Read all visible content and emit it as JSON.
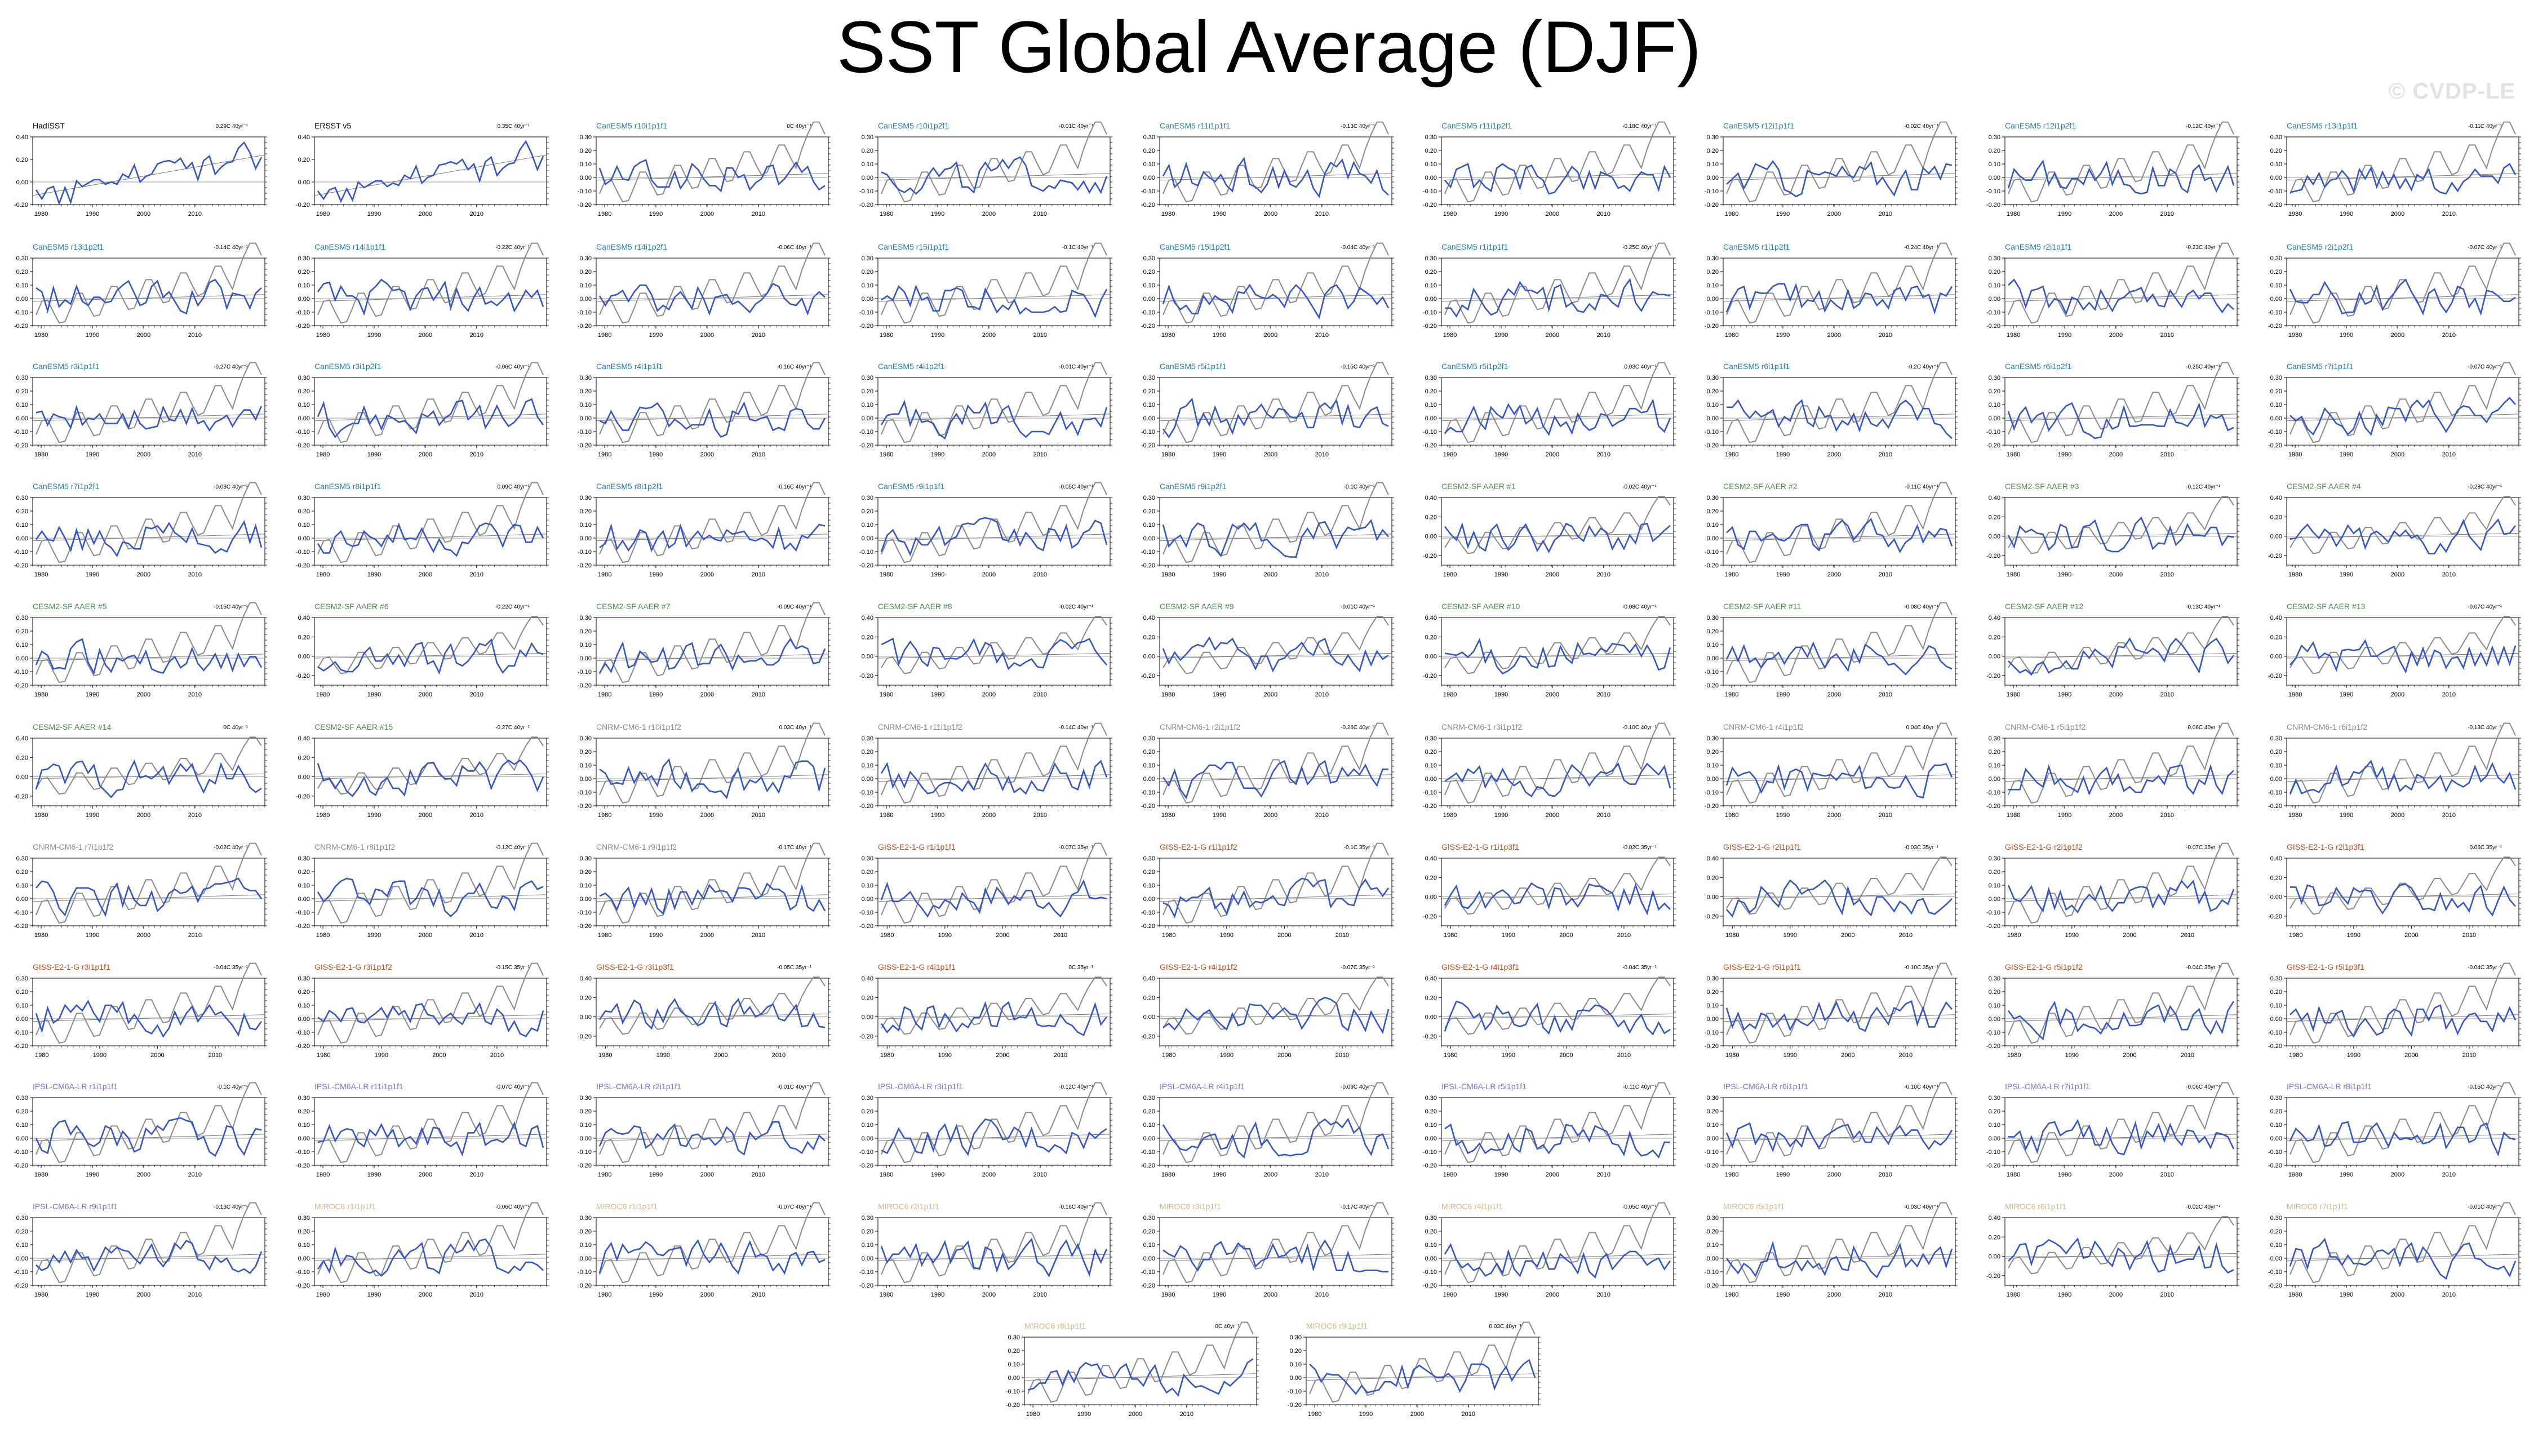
{
  "title": "SST Global Average (DJF)",
  "watermark": "© CVDP-LE",
  "colors": {
    "series": "#3355cc",
    "reference": "#8a8a8a",
    "HadISST": "#000000",
    "ERSST": "#000000",
    "CanESM5": "#1f7fb4",
    "CESM2": "#4f8a4f",
    "CNRM": "#8a8a8a",
    "GISS": "#c84b1a",
    "IPSL": "#7b6fd4",
    "MIROC6": "#e0b478"
  },
  "chart_data": [
    {
      "type": "line",
      "label": "HadISST",
      "trend": "0.29C 40yr⁻¹",
      "family": "HadISST",
      "ylim": [
        -0.2,
        0.4
      ],
      "yticks": [
        "0.40",
        "0.20",
        "0.00",
        "-0.20"
      ],
      "xticks": [
        "1980",
        "1990",
        "2000",
        "2010"
      ],
      "series": [
        {
          "values": [
            -0.07,
            -0.15,
            -0.06,
            -0.04,
            -0.19,
            -0.05,
            -0.18,
            0.01,
            -0.04,
            -0.01,
            0.02,
            0.02,
            -0.02,
            0.0,
            -0.02,
            0.07,
            0.04,
            0.15,
            0.0,
            0.05,
            0.07,
            0.16,
            0.18,
            0.19,
            0.17,
            0.21,
            0.12,
            0.17,
            0.02,
            0.19,
            0.23,
            0.07,
            0.13,
            0.17,
            0.18,
            0.3,
            0.35,
            0.26,
            0.12,
            0.22
          ]
        }
      ]
    },
    {
      "type": "line",
      "label": "ERSST v5",
      "trend": "0.35C 40yr⁻¹",
      "family": "ERSST",
      "ylim": [
        -0.2,
        0.4
      ],
      "yticks": [
        "0.40",
        "0.20",
        "0.00",
        "-0.20"
      ],
      "xticks": [
        "1980",
        "1990",
        "2000",
        "2010"
      ],
      "series": [
        {
          "values": [
            -0.08,
            -0.15,
            -0.07,
            -0.05,
            -0.17,
            -0.06,
            -0.16,
            0.0,
            -0.05,
            -0.02,
            0.01,
            0.01,
            -0.04,
            -0.01,
            -0.03,
            0.06,
            0.03,
            0.14,
            -0.01,
            0.04,
            0.06,
            0.15,
            0.16,
            0.18,
            0.16,
            0.2,
            0.11,
            0.16,
            0.01,
            0.18,
            0.22,
            0.06,
            0.12,
            0.16,
            0.17,
            0.29,
            0.36,
            0.25,
            0.11,
            0.23
          ]
        }
      ]
    },
    {
      "type": "line",
      "label": "CanESM5 r10i1p1f1",
      "trend": "0C 40yr⁻¹",
      "family": "CanESM5"
    },
    {
      "type": "line",
      "label": "CanESM5 r10i1p2f1",
      "trend": "-0.01C 40yr⁻¹",
      "family": "CanESM5"
    },
    {
      "type": "line",
      "label": "CanESM5 r11i1p1f1",
      "trend": "-0.13C 40yr⁻¹",
      "family": "CanESM5"
    },
    {
      "type": "line",
      "label": "CanESM5 r11i1p2f1",
      "trend": "-0.18C 40yr⁻¹",
      "family": "CanESM5"
    },
    {
      "type": "line",
      "label": "CanESM5 r12i1p1f1",
      "trend": "-0.02C 40yr⁻¹",
      "family": "CanESM5"
    },
    {
      "type": "line",
      "label": "CanESM5 r12i1p2f1",
      "trend": "-0.12C 40yr⁻¹",
      "family": "CanESM5"
    },
    {
      "type": "line",
      "label": "CanESM5 r13i1p1f1",
      "trend": "-0.11C 40yr⁻¹",
      "family": "CanESM5"
    },
    {
      "type": "line",
      "label": "CanESM5 r13i1p2f1",
      "trend": "-0.14C 40yr⁻¹",
      "family": "CanESM5"
    },
    {
      "type": "line",
      "label": "CanESM5 r14i1p1f1",
      "trend": "-0.22C 40yr⁻¹",
      "family": "CanESM5"
    },
    {
      "type": "line",
      "label": "CanESM5 r14i1p2f1",
      "trend": "-0.06C 40yr⁻¹",
      "family": "CanESM5"
    },
    {
      "type": "line",
      "label": "CanESM5 r15i1p1f1",
      "trend": "-0.1C 40yr⁻¹",
      "family": "CanESM5"
    },
    {
      "type": "line",
      "label": "CanESM5 r15i1p2f1",
      "trend": "-0.04C 40yr⁻¹",
      "family": "CanESM5"
    },
    {
      "type": "line",
      "label": "CanESM5 r1i1p1f1",
      "trend": "-0.25C 40yr⁻¹",
      "family": "CanESM5"
    },
    {
      "type": "line",
      "label": "CanESM5 r1i1p2f1",
      "trend": "-0.24C 40yr⁻¹",
      "family": "CanESM5"
    },
    {
      "type": "line",
      "label": "CanESM5 r2i1p1f1",
      "trend": "-0.23C 40yr⁻¹",
      "family": "CanESM5"
    },
    {
      "type": "line",
      "label": "CanESM5 r2i1p2f1",
      "trend": "-0.07C 40yr⁻¹",
      "family": "CanESM5"
    },
    {
      "type": "line",
      "label": "CanESM5 r3i1p1f1",
      "trend": "-0.27C 40yr⁻¹",
      "family": "CanESM5"
    },
    {
      "type": "line",
      "label": "CanESM5 r3i1p2f1",
      "trend": "-0.06C 40yr⁻¹",
      "family": "CanESM5"
    },
    {
      "type": "line",
      "label": "CanESM5 r4i1p1f1",
      "trend": "-0.16C 40yr⁻¹",
      "family": "CanESM5"
    },
    {
      "type": "line",
      "label": "CanESM5 r4i1p2f1",
      "trend": "-0.01C 40yr⁻¹",
      "family": "CanESM5"
    },
    {
      "type": "line",
      "label": "CanESM5 r5i1p1f1",
      "trend": "-0.15C 40yr⁻¹",
      "family": "CanESM5"
    },
    {
      "type": "line",
      "label": "CanESM5 r5i1p2f1",
      "trend": "0.03C 40yr⁻¹",
      "family": "CanESM5"
    },
    {
      "type": "line",
      "label": "CanESM5 r6i1p1f1",
      "trend": "-0.2C 40yr⁻¹",
      "family": "CanESM5"
    },
    {
      "type": "line",
      "label": "CanESM5 r6i1p2f1",
      "trend": "-0.25C 40yr⁻¹",
      "family": "CanESM5"
    },
    {
      "type": "line",
      "label": "CanESM5 r7i1p1f1",
      "trend": "-0.07C 40yr⁻¹",
      "family": "CanESM5"
    },
    {
      "type": "line",
      "label": "CanESM5 r7i1p2f1",
      "trend": "-0.03C 40yr⁻¹",
      "family": "CanESM5"
    },
    {
      "type": "line",
      "label": "CanESM5 r8i1p1f1",
      "trend": "0.09C 40yr⁻¹",
      "family": "CanESM5"
    },
    {
      "type": "line",
      "label": "CanESM5 r8i1p2f1",
      "trend": "-0.16C 40yr⁻¹",
      "family": "CanESM5"
    },
    {
      "type": "line",
      "label": "CanESM5 r9i1p1f1",
      "trend": "-0.05C 40yr⁻¹",
      "family": "CanESM5"
    },
    {
      "type": "line",
      "label": "CanESM5 r9i1p2f1",
      "trend": "-0.1C 40yr⁻¹",
      "family": "CanESM5"
    },
    {
      "type": "line",
      "label": "CESM2-SF AAER #1",
      "trend": "-0.02C 40yr⁻¹",
      "family": "CESM2",
      "wide": true
    },
    {
      "type": "line",
      "label": "CESM2-SF AAER #2",
      "trend": "-0.11C 40yr⁻¹",
      "family": "CESM2"
    },
    {
      "type": "line",
      "label": "CESM2-SF AAER #3",
      "trend": "-0.12C 40yr⁻¹",
      "family": "CESM2",
      "wide": true
    },
    {
      "type": "line",
      "label": "CESM2-SF AAER #4",
      "trend": "-0.28C 40yr⁻¹",
      "family": "CESM2",
      "wide": true
    },
    {
      "type": "line",
      "label": "CESM2-SF AAER #5",
      "trend": "-0.15C 40yr⁻¹",
      "family": "CESM2"
    },
    {
      "type": "line",
      "label": "CESM2-SF AAER #6",
      "trend": "-0.22C 40yr⁻¹",
      "family": "CESM2",
      "wide": true
    },
    {
      "type": "line",
      "label": "CESM2-SF AAER #7",
      "trend": "-0.09C 40yr⁻¹",
      "family": "CESM2"
    },
    {
      "type": "line",
      "label": "CESM2-SF AAER #8",
      "trend": "-0.02C 40yr⁻¹",
      "family": "CESM2",
      "wide": true
    },
    {
      "type": "line",
      "label": "CESM2-SF AAER #9",
      "trend": "-0.01C 40yr⁻¹",
      "family": "CESM2",
      "wide": true
    },
    {
      "type": "line",
      "label": "CESM2-SF AAER #10",
      "trend": "-0.08C 40yr⁻¹",
      "family": "CESM2",
      "wide": true
    },
    {
      "type": "line",
      "label": "CESM2-SF AAER #11",
      "trend": "-0.08C 40yr⁻¹",
      "family": "CESM2"
    },
    {
      "type": "line",
      "label": "CESM2-SF AAER #12",
      "trend": "-0.13C 40yr⁻¹",
      "family": "CESM2",
      "wide": true
    },
    {
      "type": "line",
      "label": "CESM2-SF AAER #13",
      "trend": "-0.07C 40yr⁻¹",
      "family": "CESM2",
      "wide": true
    },
    {
      "type": "line",
      "label": "CESM2-SF AAER #14",
      "trend": "0C 40yr⁻¹",
      "family": "CESM2",
      "wide": true
    },
    {
      "type": "line",
      "label": "CESM2-SF AAER #15",
      "trend": "-0.27C 40yr⁻¹",
      "family": "CESM2",
      "wide": true
    },
    {
      "type": "line",
      "label": "CNRM-CM6-1 r10i1p1f2",
      "trend": "0.03C 40yr⁻¹",
      "family": "CNRM"
    },
    {
      "type": "line",
      "label": "CNRM-CM6-1 r11i1p1f2",
      "trend": "-0.14C 40yr⁻¹",
      "family": "CNRM"
    },
    {
      "type": "line",
      "label": "CNRM-CM6-1 r2i1p1f2",
      "trend": "-0.26C 40yr⁻¹",
      "family": "CNRM"
    },
    {
      "type": "line",
      "label": "CNRM-CM6-1 r3i1p1f2",
      "trend": "-0.10C 40yr⁻¹",
      "family": "CNRM"
    },
    {
      "type": "line",
      "label": "CNRM-CM6-1 r4i1p1f2",
      "trend": "0.04C 40yr⁻¹",
      "family": "CNRM"
    },
    {
      "type": "line",
      "label": "CNRM-CM6-1 r5i1p1f2",
      "trend": "0.06C 40yr⁻¹",
      "family": "CNRM"
    },
    {
      "type": "line",
      "label": "CNRM-CM6-1 r6i1p1f2",
      "trend": "-0.13C 40yr⁻¹",
      "family": "CNRM"
    },
    {
      "type": "line",
      "label": "CNRM-CM6-1 r7i1p1f2",
      "trend": "-0.02C 40yr⁻¹",
      "family": "CNRM"
    },
    {
      "type": "line",
      "label": "CNRM-CM6-1 r8i1p1f2",
      "trend": "-0.12C 40yr⁻¹",
      "family": "CNRM"
    },
    {
      "type": "line",
      "label": "CNRM-CM6-1 r9i1p1f2",
      "trend": "-0.17C 40yr⁻¹",
      "family": "CNRM"
    },
    {
      "type": "line",
      "label": "GISS-E2-1-G r1i1p1f1",
      "trend": "-0.07C 35yr⁻¹",
      "family": "GISS",
      "span": 35
    },
    {
      "type": "line",
      "label": "GISS-E2-1-G r1i1p1f2",
      "trend": "-0.1C 35yr⁻¹",
      "family": "GISS",
      "span": 35
    },
    {
      "type": "line",
      "label": "GISS-E2-1-G r1i1p3f1",
      "trend": "-0.02C 35yr⁻¹",
      "family": "GISS",
      "span": 35,
      "wide": true
    },
    {
      "type": "line",
      "label": "GISS-E2-1-G r2i1p1f1",
      "trend": "-0.03C 35yr⁻¹",
      "family": "GISS",
      "span": 35,
      "wide": true
    },
    {
      "type": "line",
      "label": "GISS-E2-1-G r2i1p1f2",
      "trend": "-0.07C 35yr⁻¹",
      "family": "GISS",
      "span": 35
    },
    {
      "type": "line",
      "label": "GISS-E2-1-G r2i1p3f1",
      "trend": "0.06C 35yr⁻¹",
      "family": "GISS",
      "span": 35,
      "wide": true
    },
    {
      "type": "line",
      "label": "GISS-E2-1-G r3i1p1f1",
      "trend": "-0.04C 35yr⁻¹",
      "family": "GISS",
      "span": 35
    },
    {
      "type": "line",
      "label": "GISS-E2-1-G r3i1p1f2",
      "trend": "-0.15C 35yr⁻¹",
      "family": "GISS",
      "span": 35
    },
    {
      "type": "line",
      "label": "GISS-E2-1-G r3i1p3f1",
      "trend": "-0.05C 35yr⁻¹",
      "family": "GISS",
      "span": 35,
      "wide": true
    },
    {
      "type": "line",
      "label": "GISS-E2-1-G r4i1p1f1",
      "trend": "0C 35yr⁻¹",
      "family": "GISS",
      "span": 35,
      "wide": true
    },
    {
      "type": "line",
      "label": "GISS-E2-1-G r4i1p1f2",
      "trend": "-0.07C 35yr⁻¹",
      "family": "GISS",
      "span": 35,
      "wide": true
    },
    {
      "type": "line",
      "label": "GISS-E2-1-G r4i1p3f1",
      "trend": "-0.04C 35yr⁻¹",
      "family": "GISS",
      "span": 35,
      "wide": true
    },
    {
      "type": "line",
      "label": "GISS-E2-1-G r5i1p1f1",
      "trend": "-0.10C 35yr⁻¹",
      "family": "GISS",
      "span": 35
    },
    {
      "type": "line",
      "label": "GISS-E2-1-G r5i1p1f2",
      "trend": "-0.04C 35yr⁻¹",
      "family": "GISS",
      "span": 35
    },
    {
      "type": "line",
      "label": "GISS-E2-1-G r5i1p3f1",
      "trend": "-0.04C 35yr⁻¹",
      "family": "GISS",
      "span": 35
    },
    {
      "type": "line",
      "label": "IPSL-CM6A-LR r1i1p1f1",
      "trend": "-0.1C 40yr⁻¹",
      "family": "IPSL"
    },
    {
      "type": "line",
      "label": "IPSL-CM6A-LR r11i1p1f1",
      "trend": "-0.07C 40yr⁻¹",
      "family": "IPSL"
    },
    {
      "type": "line",
      "label": "IPSL-CM6A-LR r2i1p1f1",
      "trend": "-0.01C 40yr⁻¹",
      "family": "IPSL"
    },
    {
      "type": "line",
      "label": "IPSL-CM6A-LR r3i1p1f1",
      "trend": "-0.12C 40yr⁻¹",
      "family": "IPSL"
    },
    {
      "type": "line",
      "label": "IPSL-CM6A-LR r4i1p1f1",
      "trend": "-0.09C 40yr⁻¹",
      "family": "IPSL"
    },
    {
      "type": "line",
      "label": "IPSL-CM6A-LR r5i1p1f1",
      "trend": "-0.11C 40yr⁻¹",
      "family": "IPSL"
    },
    {
      "type": "line",
      "label": "IPSL-CM6A-LR r6i1p1f1",
      "trend": "-0.10C 40yr⁻¹",
      "family": "IPSL"
    },
    {
      "type": "line",
      "label": "IPSL-CM6A-LR r7i1p1f1",
      "trend": "-0.06C 40yr⁻¹",
      "family": "IPSL"
    },
    {
      "type": "line",
      "label": "IPSL-CM6A-LR r8i1p1f1",
      "trend": "-0.15C 40yr⁻¹",
      "family": "IPSL"
    },
    {
      "type": "line",
      "label": "IPSL-CM6A-LR r9i1p1f1",
      "trend": "-0.13C 40yr⁻¹",
      "family": "IPSL"
    },
    {
      "type": "line",
      "label": "MIROC6 r1i1p1f1",
      "trend": "-0.06C 40yr⁻¹",
      "family": "MIROC6"
    },
    {
      "type": "line",
      "label": "MIROC6 r1i1p1f1",
      "trend": "-0.07C 40yr⁻¹",
      "family": "MIROC6"
    },
    {
      "type": "line",
      "label": "MIROC6 r2i1p1f1",
      "trend": "-0.16C 40yr⁻¹",
      "family": "MIROC6"
    },
    {
      "type": "line",
      "label": "MIROC6 r3i1p1f1",
      "trend": "-0.17C 40yr⁻¹",
      "family": "MIROC6"
    },
    {
      "type": "line",
      "label": "MIROC6 r4i1p1f1",
      "trend": "-0.05C 40yr⁻¹",
      "family": "MIROC6"
    },
    {
      "type": "line",
      "label": "MIROC6 r5i1p1f1",
      "trend": "-0.03C 40yr⁻¹",
      "family": "MIROC6"
    },
    {
      "type": "line",
      "label": "MIROC6 r6i1p1f1",
      "trend": "-0.02C 40yr⁻¹",
      "family": "MIROC6",
      "wide": true
    },
    {
      "type": "line",
      "label": "MIROC6 r7i1p1f1",
      "trend": "-0.01C 40yr⁻¹",
      "family": "MIROC6"
    },
    {
      "type": "line",
      "label": "MIROC6 r8i1p1f1",
      "trend": "0C 40yr⁻¹",
      "family": "MIROC6"
    },
    {
      "type": "line",
      "label": "MIROC6 r9i1p1f1",
      "trend": "0.03C 40yr⁻¹",
      "family": "MIROC6"
    }
  ]
}
